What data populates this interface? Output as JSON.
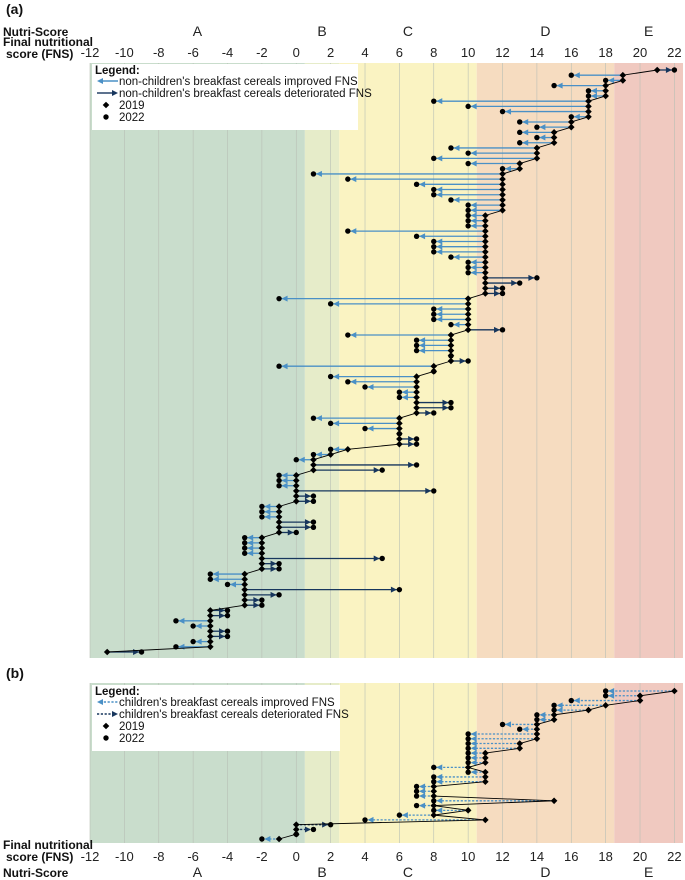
{
  "figure": {
    "panel_a_label": "(a)",
    "panel_b_label": "(b)",
    "nutri_score_label": "Nutri-Score",
    "fns_label_line1": "Final nutritional",
    "fns_label_line2": "score (FNS)",
    "grades": [
      "A",
      "B",
      "C",
      "D",
      "E"
    ]
  },
  "colors": {
    "A": "#c9ddcc",
    "B": "#e6ecc9",
    "C": "#faf3c2",
    "D": "#f6dcc0",
    "E": "#f0c9c0",
    "improved": "#4a90c6",
    "deteriorated": "#17365d",
    "marker": "#000000"
  },
  "chart_data": [
    {
      "type": "dumbbell",
      "panel": "(a)",
      "xlabel": "Final nutritional score (FNS)",
      "x_ticks": [
        -12,
        -10,
        -8,
        -6,
        -4,
        -2,
        0,
        2,
        4,
        6,
        8,
        10,
        12,
        14,
        16,
        18,
        20,
        22
      ],
      "xlim": [
        -12,
        22.5
      ],
      "bands": [
        {
          "grade": "A",
          "from": -12,
          "to": 0.5
        },
        {
          "grade": "B",
          "from": 0.5,
          "to": 2.5
        },
        {
          "grade": "C",
          "from": 2.5,
          "to": 10.5
        },
        {
          "grade": "D",
          "from": 10.5,
          "to": 18.5
        },
        {
          "grade": "E",
          "from": 18.5,
          "to": 22.5
        }
      ],
      "legend": {
        "title": "Legend:",
        "improved": "non-children's breakfast cereals improved FNS",
        "deteriorated": "non-children's breakfast cereals deteriorated FNS",
        "y2019": "2019",
        "y2022": "2022"
      },
      "pairs": [
        [
          21,
          22
        ],
        [
          19,
          16
        ],
        [
          19,
          18
        ],
        [
          18,
          15
        ],
        [
          18,
          17
        ],
        [
          18,
          17
        ],
        [
          17,
          8
        ],
        [
          17,
          10
        ],
        [
          17,
          12
        ],
        [
          17,
          16
        ],
        [
          16,
          13
        ],
        [
          16,
          14
        ],
        [
          15,
          13
        ],
        [
          15,
          14
        ],
        [
          15,
          13
        ],
        [
          14,
          9
        ],
        [
          14,
          10
        ],
        [
          14,
          8
        ],
        [
          13,
          10
        ],
        [
          13,
          12
        ],
        [
          12,
          1
        ],
        [
          12,
          3
        ],
        [
          12,
          7
        ],
        [
          12,
          8
        ],
        [
          12,
          8
        ],
        [
          12,
          9
        ],
        [
          12,
          10
        ],
        [
          12,
          10
        ],
        [
          11,
          10
        ],
        [
          11,
          10
        ],
        [
          11,
          10
        ],
        [
          11,
          3
        ],
        [
          11,
          7
        ],
        [
          11,
          8
        ],
        [
          11,
          8
        ],
        [
          11,
          8
        ],
        [
          11,
          9
        ],
        [
          11,
          10
        ],
        [
          11,
          10
        ],
        [
          11,
          10
        ],
        [
          11,
          14
        ],
        [
          11,
          13
        ],
        [
          11,
          12
        ],
        [
          11,
          12
        ],
        [
          10,
          -1
        ],
        [
          10,
          2
        ],
        [
          10,
          8
        ],
        [
          10,
          8
        ],
        [
          10,
          8
        ],
        [
          10,
          9
        ],
        [
          10,
          12
        ],
        [
          9,
          3
        ],
        [
          9,
          7
        ],
        [
          9,
          7
        ],
        [
          9,
          7
        ],
        [
          9,
          9
        ],
        [
          9,
          10
        ],
        [
          8,
          -1
        ],
        [
          8,
          8
        ],
        [
          7,
          2
        ],
        [
          7,
          3
        ],
        [
          7,
          4
        ],
        [
          7,
          6
        ],
        [
          7,
          6
        ],
        [
          7,
          9
        ],
        [
          7,
          9
        ],
        [
          7,
          8
        ],
        [
          6,
          1
        ],
        [
          6,
          2
        ],
        [
          6,
          4
        ],
        [
          6,
          6
        ],
        [
          6,
          7
        ],
        [
          6,
          7
        ],
        [
          3,
          2
        ],
        [
          2,
          1
        ],
        [
          1,
          0
        ],
        [
          1,
          7
        ],
        [
          1,
          5
        ],
        [
          0,
          -1
        ],
        [
          0,
          -1
        ],
        [
          0,
          -1
        ],
        [
          0,
          8
        ],
        [
          0,
          1
        ],
        [
          0,
          1
        ],
        [
          -1,
          -2
        ],
        [
          -1,
          -2
        ],
        [
          -1,
          -2
        ],
        [
          -1,
          1
        ],
        [
          -1,
          1
        ],
        [
          -1,
          0
        ],
        [
          -2,
          -3
        ],
        [
          -2,
          -3
        ],
        [
          -2,
          -3
        ],
        [
          -2,
          -3
        ],
        [
          -2,
          5
        ],
        [
          -2,
          -1
        ],
        [
          -2,
          -1
        ],
        [
          -3,
          -5
        ],
        [
          -3,
          -5
        ],
        [
          -3,
          -4
        ],
        [
          -3,
          6
        ],
        [
          -3,
          -1
        ],
        [
          -3,
          -2
        ],
        [
          -3,
          -2
        ],
        [
          -5,
          -4
        ],
        [
          -5,
          -4
        ],
        [
          -5,
          -7
        ],
        [
          -5,
          -6
        ],
        [
          -5,
          -4
        ],
        [
          -5,
          -4
        ],
        [
          -5,
          -6
        ],
        [
          -5,
          -7
        ],
        [
          -11,
          -9
        ]
      ]
    },
    {
      "type": "dumbbell",
      "panel": "(b)",
      "xlabel": "Final nutritional score (FNS)",
      "x_ticks": [
        -12,
        -10,
        -8,
        -6,
        -4,
        -2,
        0,
        2,
        4,
        6,
        8,
        10,
        12,
        14,
        16,
        18,
        20,
        22
      ],
      "xlim": [
        -12,
        22.5
      ],
      "bands": [
        {
          "grade": "A",
          "from": -12,
          "to": 0.5
        },
        {
          "grade": "B",
          "from": 0.5,
          "to": 2.5
        },
        {
          "grade": "C",
          "from": 2.5,
          "to": 10.5
        },
        {
          "grade": "D",
          "from": 10.5,
          "to": 18.5
        },
        {
          "grade": "E",
          "from": 18.5,
          "to": 22.5
        }
      ],
      "legend": {
        "title": "Legend:",
        "improved": "children's breakfast cereals improved FNS",
        "deteriorated": "children's breakfast cereals deteriorated FNS",
        "y2019": "2019",
        "y2022": "2022"
      },
      "pairs": [
        [
          22,
          18
        ],
        [
          20,
          18
        ],
        [
          20,
          16
        ],
        [
          18,
          15
        ],
        [
          17,
          15
        ],
        [
          15,
          14
        ],
        [
          15,
          14
        ],
        [
          14,
          12
        ],
        [
          14,
          13
        ],
        [
          14,
          10
        ],
        [
          14,
          10
        ],
        [
          13,
          10
        ],
        [
          13,
          10
        ],
        [
          11,
          10
        ],
        [
          11,
          10
        ],
        [
          11,
          10
        ],
        [
          10,
          8
        ],
        [
          11,
          10
        ],
        [
          11,
          8
        ],
        [
          11,
          8
        ],
        [
          8,
          7
        ],
        [
          8,
          7
        ],
        [
          8,
          7
        ],
        [
          15,
          8
        ],
        [
          8,
          7
        ],
        [
          10,
          8
        ],
        [
          8,
          6
        ],
        [
          11,
          4
        ],
        [
          0,
          2
        ],
        [
          0,
          1
        ],
        [
          0,
          0
        ],
        [
          -1,
          -2
        ]
      ]
    }
  ]
}
